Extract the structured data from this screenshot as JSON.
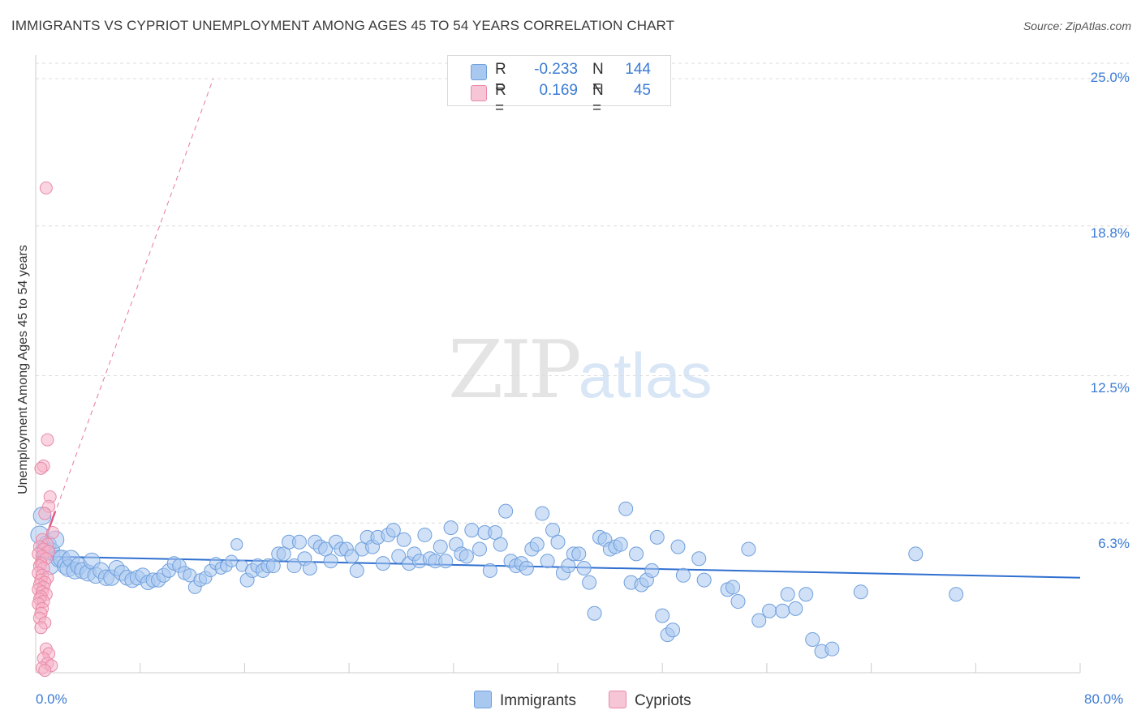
{
  "header": {
    "title": "IMMIGRANTS VS CYPRIOT UNEMPLOYMENT AMONG AGES 45 TO 54 YEARS CORRELATION CHART",
    "source": "Source: ZipAtlas.com"
  },
  "watermark": {
    "zip": "ZIP",
    "atlas": "atlas"
  },
  "legend": {
    "rows": [
      {
        "r_label": "R =",
        "r_value": "-0.233",
        "n_label": "N =",
        "n_value": "144"
      },
      {
        "r_label": "R =",
        "r_value": "0.169",
        "n_label": "N =",
        "n_value": "45"
      }
    ]
  },
  "bottom_legend": {
    "immigrants": "Immigrants",
    "cypriots": "Cypriots"
  },
  "colors": {
    "blue_fill": "#a9c8f0",
    "blue_stroke": "#6f9fdc",
    "blue_line": "#2f6fd0",
    "pink_fill": "#f6b3c8",
    "pink_stroke": "#e88aa8",
    "pink_line": "#e05a86",
    "grid": "#dcdcdc",
    "accent_text": "#3a7bd5"
  },
  "chart_data": {
    "type": "scatter",
    "title": "IMMIGRANTS VS CYPRIOT UNEMPLOYMENT AMONG AGES 45 TO 54 YEARS CORRELATION CHART",
    "xlabel": "",
    "ylabel": "Unemployment Among Ages 45 to 54 years",
    "xlim": [
      0,
      80
    ],
    "ylim": [
      0,
      25
    ],
    "x_tick_labels": [
      "0.0%",
      "80.0%"
    ],
    "y_ticks": [
      6.3,
      12.5,
      18.8,
      25.0
    ],
    "y_tick_labels": [
      "6.3%",
      "12.5%",
      "18.8%",
      "25.0%"
    ],
    "series": [
      {
        "name": "Immigrants",
        "r": -0.233,
        "n": 144,
        "trend": {
          "x": [
            0,
            80
          ],
          "y": [
            4.9,
            4.0
          ]
        },
        "points": [
          [
            0.3,
            5.8
          ],
          [
            0.5,
            6.6
          ],
          [
            0.7,
            5.2
          ],
          [
            0.9,
            5.4
          ],
          [
            1.1,
            4.5
          ],
          [
            1.2,
            5.1
          ],
          [
            1.5,
            5.6
          ],
          [
            1.8,
            4.8
          ],
          [
            2.0,
            4.8
          ],
          [
            2.3,
            4.5
          ],
          [
            2.5,
            4.4
          ],
          [
            2.7,
            4.8
          ],
          [
            3.0,
            4.3
          ],
          [
            3.3,
            4.5
          ],
          [
            3.6,
            4.3
          ],
          [
            4.0,
            4.2
          ],
          [
            4.3,
            4.7
          ],
          [
            4.6,
            4.1
          ],
          [
            5.0,
            4.3
          ],
          [
            5.4,
            4.0
          ],
          [
            5.8,
            4.0
          ],
          [
            6.2,
            4.4
          ],
          [
            6.6,
            4.2
          ],
          [
            7.0,
            4.0
          ],
          [
            7.4,
            3.9
          ],
          [
            7.8,
            4.0
          ],
          [
            8.2,
            4.1
          ],
          [
            8.6,
            3.8
          ],
          [
            9.0,
            3.9
          ],
          [
            9.4,
            3.9
          ],
          [
            9.8,
            4.1
          ],
          [
            10.2,
            4.3
          ],
          [
            10.6,
            4.6
          ],
          [
            11.0,
            4.5
          ],
          [
            11.4,
            4.2
          ],
          [
            11.8,
            4.1
          ],
          [
            12.2,
            3.6
          ],
          [
            12.6,
            3.9
          ],
          [
            13.0,
            4.0
          ],
          [
            13.4,
            4.3
          ],
          [
            13.8,
            4.6
          ],
          [
            14.2,
            4.4
          ],
          [
            14.6,
            4.5
          ],
          [
            15.0,
            4.7
          ],
          [
            15.4,
            5.4
          ],
          [
            15.8,
            4.5
          ],
          [
            16.2,
            3.9
          ],
          [
            16.6,
            4.3
          ],
          [
            17.0,
            4.5
          ],
          [
            17.4,
            4.3
          ],
          [
            17.8,
            4.5
          ],
          [
            18.2,
            4.5
          ],
          [
            18.6,
            5.0
          ],
          [
            19.0,
            5.0
          ],
          [
            19.4,
            5.5
          ],
          [
            19.8,
            4.5
          ],
          [
            20.2,
            5.5
          ],
          [
            20.6,
            4.8
          ],
          [
            21.0,
            4.4
          ],
          [
            21.4,
            5.5
          ],
          [
            21.8,
            5.3
          ],
          [
            22.2,
            5.2
          ],
          [
            22.6,
            4.7
          ],
          [
            23.0,
            5.5
          ],
          [
            23.4,
            5.2
          ],
          [
            23.8,
            5.2
          ],
          [
            24.2,
            4.9
          ],
          [
            24.6,
            4.3
          ],
          [
            25.0,
            5.2
          ],
          [
            25.4,
            5.7
          ],
          [
            25.8,
            5.3
          ],
          [
            26.2,
            5.7
          ],
          [
            26.6,
            4.6
          ],
          [
            27.0,
            5.8
          ],
          [
            27.4,
            6.0
          ],
          [
            27.8,
            4.9
          ],
          [
            28.2,
            5.6
          ],
          [
            28.6,
            4.6
          ],
          [
            29.0,
            5.0
          ],
          [
            29.4,
            4.7
          ],
          [
            29.8,
            5.8
          ],
          [
            30.2,
            4.8
          ],
          [
            30.6,
            4.7
          ],
          [
            31.0,
            5.3
          ],
          [
            31.4,
            4.7
          ],
          [
            31.8,
            6.1
          ],
          [
            32.2,
            5.4
          ],
          [
            32.6,
            5.0
          ],
          [
            33.0,
            4.9
          ],
          [
            33.4,
            6.0
          ],
          [
            34.0,
            5.2
          ],
          [
            34.4,
            5.9
          ],
          [
            34.8,
            4.3
          ],
          [
            35.2,
            5.9
          ],
          [
            35.6,
            5.4
          ],
          [
            36.0,
            6.8
          ],
          [
            36.4,
            4.7
          ],
          [
            36.8,
            4.5
          ],
          [
            37.2,
            4.6
          ],
          [
            37.6,
            4.4
          ],
          [
            38.0,
            5.2
          ],
          [
            38.4,
            5.4
          ],
          [
            38.8,
            6.7
          ],
          [
            39.2,
            4.7
          ],
          [
            39.6,
            6.0
          ],
          [
            40.0,
            5.5
          ],
          [
            40.4,
            4.2
          ],
          [
            40.8,
            4.5
          ],
          [
            41.2,
            5.0
          ],
          [
            41.6,
            5.0
          ],
          [
            42.0,
            4.4
          ],
          [
            42.4,
            3.8
          ],
          [
            42.8,
            2.5
          ],
          [
            43.2,
            5.7
          ],
          [
            43.6,
            5.6
          ],
          [
            44.0,
            5.2
          ],
          [
            44.4,
            5.3
          ],
          [
            44.8,
            5.4
          ],
          [
            45.2,
            6.9
          ],
          [
            45.6,
            3.8
          ],
          [
            46.0,
            5.0
          ],
          [
            46.4,
            3.7
          ],
          [
            46.8,
            3.9
          ],
          [
            47.2,
            4.3
          ],
          [
            47.6,
            5.7
          ],
          [
            48.0,
            2.4
          ],
          [
            48.4,
            1.6
          ],
          [
            48.8,
            1.8
          ],
          [
            49.2,
            5.3
          ],
          [
            49.6,
            4.1
          ],
          [
            50.8,
            4.8
          ],
          [
            51.2,
            3.9
          ],
          [
            53.0,
            3.5
          ],
          [
            53.4,
            3.6
          ],
          [
            53.8,
            3.0
          ],
          [
            54.6,
            5.2
          ],
          [
            55.4,
            2.2
          ],
          [
            56.2,
            2.6
          ],
          [
            57.2,
            2.6
          ],
          [
            57.6,
            3.3
          ],
          [
            58.2,
            2.7
          ],
          [
            59.0,
            3.3
          ],
          [
            59.5,
            1.4
          ],
          [
            60.2,
            0.9
          ],
          [
            61.0,
            1.0
          ],
          [
            63.2,
            3.4
          ],
          [
            67.4,
            5.0
          ],
          [
            70.5,
            3.3
          ]
        ]
      },
      {
        "name": "Cypriots",
        "r": 0.169,
        "n": 45,
        "trend": {
          "x": [
            0,
            13.6
          ],
          "y": [
            4.5,
            25.0
          ]
        },
        "points": [
          [
            0.8,
            20.4
          ],
          [
            0.9,
            9.8
          ],
          [
            0.6,
            8.7
          ],
          [
            0.4,
            8.6
          ],
          [
            1.1,
            7.4
          ],
          [
            1.0,
            7.0
          ],
          [
            0.7,
            6.7
          ],
          [
            1.3,
            5.9
          ],
          [
            0.5,
            5.6
          ],
          [
            0.9,
            5.4
          ],
          [
            0.3,
            5.3
          ],
          [
            0.6,
            5.2
          ],
          [
            1.0,
            5.1
          ],
          [
            0.2,
            5.0
          ],
          [
            0.5,
            4.9
          ],
          [
            0.8,
            4.8
          ],
          [
            0.4,
            4.6
          ],
          [
            0.3,
            4.5
          ],
          [
            0.6,
            4.4
          ],
          [
            0.2,
            4.2
          ],
          [
            0.5,
            4.1
          ],
          [
            0.9,
            4.0
          ],
          [
            0.4,
            3.9
          ],
          [
            0.7,
            3.8
          ],
          [
            0.3,
            3.7
          ],
          [
            0.6,
            3.6
          ],
          [
            0.2,
            3.5
          ],
          [
            0.5,
            3.4
          ],
          [
            0.8,
            3.3
          ],
          [
            0.4,
            3.2
          ],
          [
            0.3,
            3.1
          ],
          [
            0.6,
            3.0
          ],
          [
            0.2,
            2.9
          ],
          [
            0.5,
            2.7
          ],
          [
            0.4,
            2.5
          ],
          [
            0.3,
            2.3
          ],
          [
            0.7,
            2.1
          ],
          [
            0.4,
            1.9
          ],
          [
            0.8,
            1.0
          ],
          [
            1.0,
            0.8
          ],
          [
            0.6,
            0.6
          ],
          [
            0.9,
            0.4
          ],
          [
            0.5,
            0.2
          ],
          [
            1.2,
            0.3
          ],
          [
            0.7,
            0.1
          ]
        ]
      }
    ]
  }
}
